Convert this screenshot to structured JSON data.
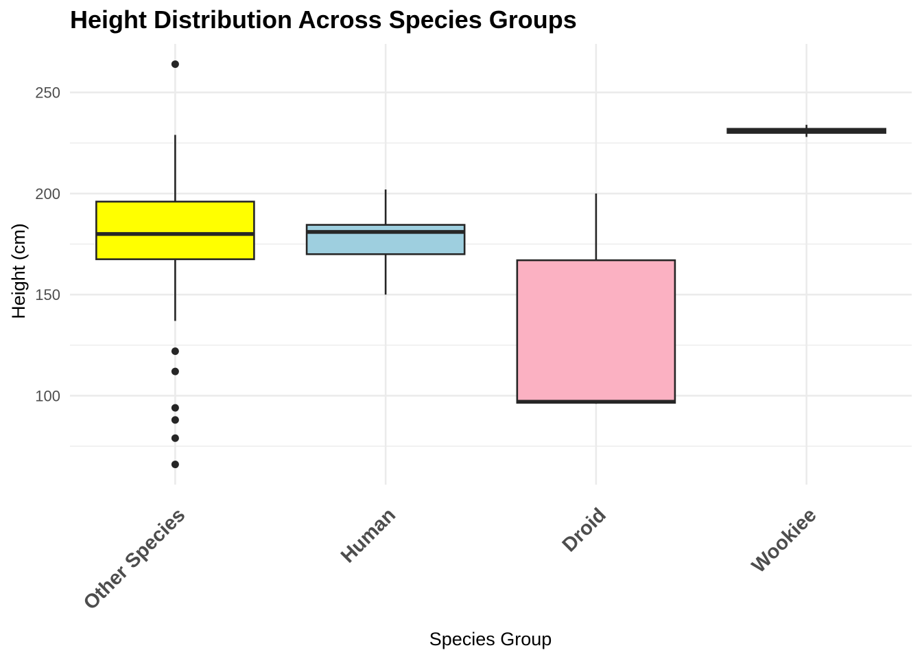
{
  "chart_data": {
    "type": "boxplot",
    "title": "Height Distribution Across Species Groups",
    "xlabel": "Species Group",
    "ylabel": "Height (cm)",
    "ylim": [
      56,
      274
    ],
    "yticks": [
      100,
      150,
      200,
      250
    ],
    "grid": true,
    "legend": "none",
    "categories": [
      "Other Species",
      "Human",
      "Droid",
      "Wookiee"
    ],
    "boxes": [
      {
        "name": "Other Species",
        "fill": "#FFFF00",
        "whisker_low": 137,
        "q1": 167.5,
        "median": 180,
        "q3": 196,
        "whisker_high": 229,
        "outliers": [
          264,
          122,
          112,
          94,
          88,
          79,
          66
        ]
      },
      {
        "name": "Human",
        "fill": "#9ECFDF",
        "whisker_low": 150,
        "q1": 170,
        "median": 181,
        "q3": 184.5,
        "whisker_high": 202,
        "outliers": []
      },
      {
        "name": "Droid",
        "fill": "#FBB1C2",
        "whisker_low": 96,
        "q1": 96.5,
        "median": 97,
        "q3": 167,
        "whisker_high": 200,
        "outliers": []
      },
      {
        "name": "Wookiee",
        "fill": "#FFA500",
        "whisker_low": 228,
        "q1": 230,
        "median": 231,
        "q3": 232,
        "whisker_high": 234,
        "outliers": []
      }
    ]
  }
}
